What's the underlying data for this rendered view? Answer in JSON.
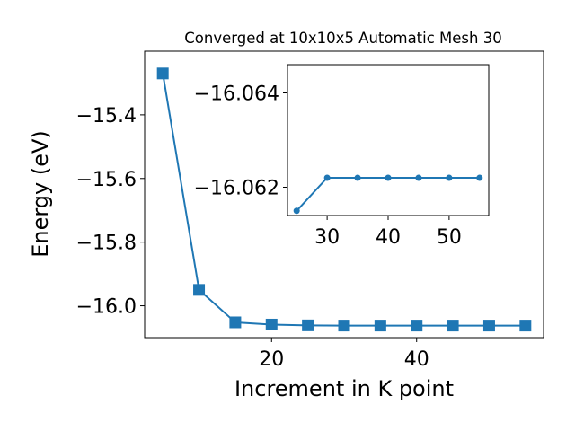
{
  "chart_data": [
    {
      "type": "line",
      "title": "Converged at 10x10x5 Automatic Mesh 30",
      "xlabel": "Increment in K point",
      "ylabel": "Energy (eV)",
      "x": [
        5,
        10,
        15,
        20,
        25,
        30,
        35,
        40,
        45,
        50,
        55
      ],
      "series": [
        {
          "values": [
            -15.27,
            -15.95,
            -16.052,
            -16.059,
            -16.0615,
            -16.0622,
            -16.0622,
            -16.0622,
            -16.0622,
            -16.0622,
            -16.0622
          ],
          "marker": "square",
          "color": "#1f77b4"
        }
      ],
      "xlim": [
        2.5,
        57.5
      ],
      "ylim": [
        -16.1,
        -15.2
      ],
      "xticks": [
        20,
        40
      ],
      "yticks": [
        -16.0,
        -15.8,
        -15.6,
        -15.4
      ],
      "xtick_labels": [
        "20",
        "40"
      ],
      "ytick_labels": [
        "−16.0",
        "−15.8",
        "−15.6",
        "−15.4"
      ],
      "grid": false
    },
    {
      "type": "line",
      "title": "",
      "xlabel": "",
      "ylabel": "",
      "x": [
        25,
        30,
        35,
        40,
        45,
        50,
        55
      ],
      "series": [
        {
          "values": [
            -16.0615,
            -16.0622,
            -16.0622,
            -16.0622,
            -16.0622,
            -16.0622,
            -16.0622
          ],
          "marker": "circle",
          "color": "#1f77b4"
        }
      ],
      "xlim": [
        23.5,
        56.5
      ],
      "ylim": [
        -16.0614,
        -16.0646
      ],
      "y_inverted": true,
      "xticks": [
        30,
        40,
        50
      ],
      "yticks": [
        -16.064,
        -16.062
      ],
      "xtick_labels": [
        "30",
        "40",
        "50"
      ],
      "ytick_labels": [
        "−16.064",
        "−16.062"
      ],
      "grid": false
    }
  ]
}
